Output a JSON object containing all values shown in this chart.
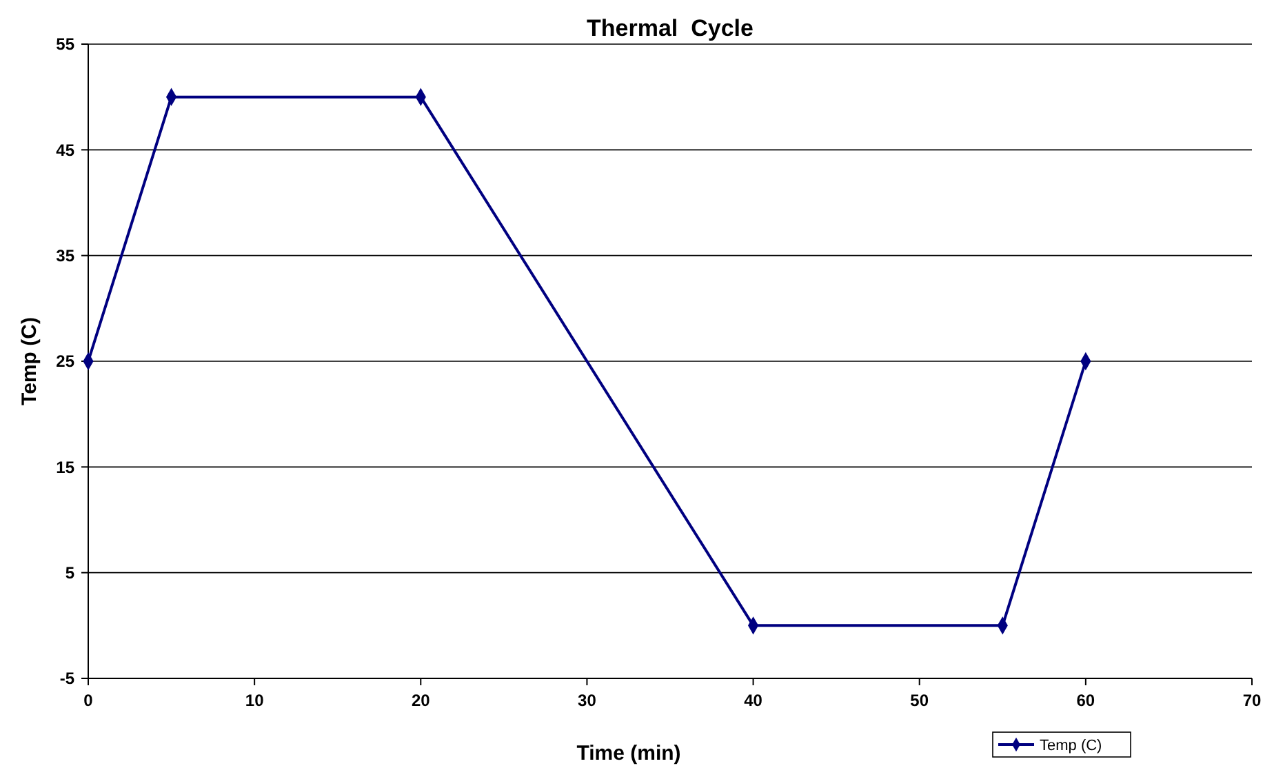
{
  "chart_data": {
    "type": "line",
    "title": "Thermal  Cycle",
    "xlabel": "Time (min)",
    "ylabel": "Temp (C)",
    "x": [
      0,
      5,
      20,
      40,
      55,
      60
    ],
    "series": [
      {
        "name": "Temp (C)",
        "color": "#000080",
        "values": [
          25,
          50,
          50,
          0,
          0,
          25
        ]
      }
    ],
    "xlim": [
      0,
      70
    ],
    "xticks": [
      0,
      10,
      20,
      30,
      40,
      50,
      60,
      70
    ],
    "ylim": [
      -5,
      55
    ],
    "yticks": [
      -5,
      5,
      15,
      25,
      35,
      45,
      55
    ],
    "grid": "y",
    "legend": "bottom right",
    "marker": "diamond",
    "line_style": "solid"
  }
}
